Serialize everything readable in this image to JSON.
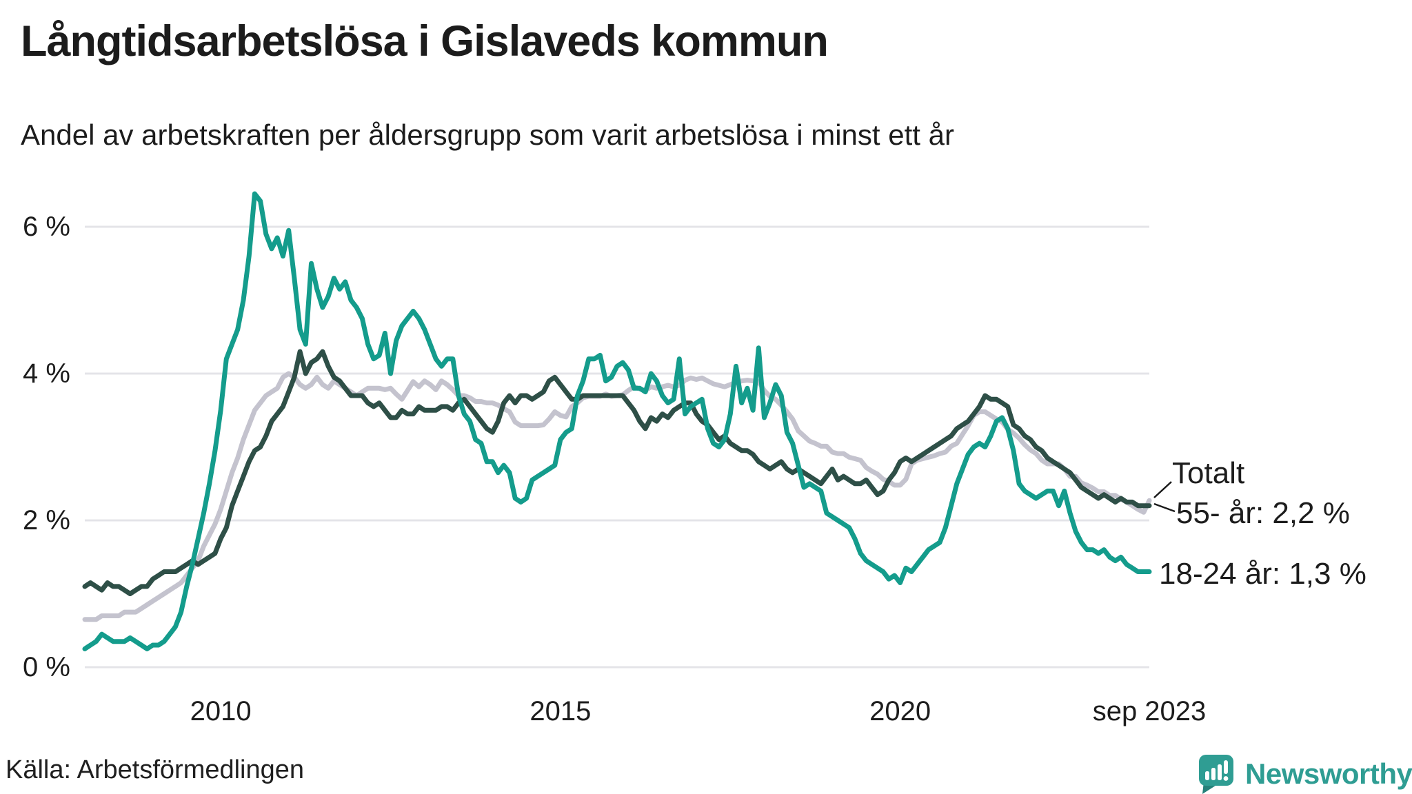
{
  "header": {
    "title": "Långtidsarbetslösa i Gislaveds kommun",
    "subtitle": "Andel av arbetskraften per åldersgrupp som varit arbetslösa i minst ett år"
  },
  "source": {
    "label": "Källa: Arbetsförmedlingen"
  },
  "branding": {
    "name": "Newsworthy",
    "logo_color": "#2F9D93"
  },
  "colors": {
    "grid": "#E4E4E8",
    "text": "#1c1c1c",
    "annotation_connector": "#1a1a1a"
  },
  "chart_data": {
    "type": "line",
    "title": "Långtidsarbetslösa i Gislaveds kommun",
    "subtitle": "Andel av arbetskraften per åldersgrupp som varit arbetslösa i minst ett år",
    "x_start": "2008-01",
    "x_end": "2023-09",
    "x_unit": "month",
    "grid": "horizontal",
    "legend_position": "right-annotations",
    "ylim": [
      0,
      6.6
    ],
    "y_ticks": [
      0,
      2,
      4,
      6
    ],
    "y_tick_suffix": " %",
    "x_tick_labels": [
      {
        "label": "2010",
        "month_index": 24
      },
      {
        "label": "2015",
        "month_index": 84
      },
      {
        "label": "2020",
        "month_index": 144
      },
      {
        "label": "sep 2023",
        "month_index": 188
      }
    ],
    "annotations": [
      {
        "text": "Totalt"
      },
      {
        "text": "55- år: 2,2 %"
      },
      {
        "text": "18-24 år: 1,3 %"
      }
    ],
    "series": [
      {
        "name": "Totalt",
        "color": "#C4C3CE",
        "final_value_label": null,
        "values": [
          0.65,
          0.65,
          0.65,
          0.7,
          0.7,
          0.7,
          0.7,
          0.75,
          0.75,
          0.75,
          0.8,
          0.85,
          0.9,
          0.95,
          1.0,
          1.05,
          1.1,
          1.15,
          1.25,
          1.35,
          1.45,
          1.65,
          1.8,
          1.95,
          2.15,
          2.4,
          2.65,
          2.85,
          3.1,
          3.3,
          3.5,
          3.6,
          3.7,
          3.75,
          3.8,
          3.95,
          4.0,
          3.95,
          3.85,
          3.8,
          3.85,
          3.95,
          3.85,
          3.8,
          3.9,
          3.85,
          3.8,
          3.75,
          3.7,
          3.75,
          3.8,
          3.8,
          3.8,
          3.78,
          3.8,
          3.72,
          3.65,
          3.77,
          3.89,
          3.82,
          3.9,
          3.85,
          3.78,
          3.9,
          3.85,
          3.78,
          3.7,
          3.7,
          3.67,
          3.62,
          3.62,
          3.6,
          3.6,
          3.57,
          3.52,
          3.48,
          3.34,
          3.29,
          3.29,
          3.29,
          3.29,
          3.3,
          3.38,
          3.48,
          3.43,
          3.41,
          3.55,
          3.6,
          3.67,
          3.69,
          3.69,
          3.69,
          3.72,
          3.69,
          3.7,
          3.71,
          3.77,
          3.82,
          3.79,
          3.77,
          3.82,
          3.8,
          3.82,
          3.84,
          3.82,
          3.84,
          3.91,
          3.94,
          3.92,
          3.94,
          3.9,
          3.86,
          3.84,
          3.82,
          3.85,
          3.88,
          3.9,
          3.91,
          3.9,
          3.89,
          3.77,
          3.69,
          3.65,
          3.57,
          3.48,
          3.38,
          3.22,
          3.15,
          3.08,
          3.05,
          3.01,
          3.01,
          2.93,
          2.91,
          2.91,
          2.86,
          2.84,
          2.82,
          2.72,
          2.67,
          2.63,
          2.56,
          2.53,
          2.48,
          2.48,
          2.56,
          2.77,
          2.82,
          2.84,
          2.86,
          2.88,
          2.91,
          2.93,
          3.01,
          3.05,
          3.17,
          3.29,
          3.43,
          3.48,
          3.48,
          3.43,
          3.38,
          3.34,
          3.24,
          3.19,
          3.12,
          3.03,
          2.96,
          2.91,
          2.82,
          2.77,
          2.77,
          2.77,
          2.7,
          2.6,
          2.6,
          2.51,
          2.48,
          2.44,
          2.39,
          2.39,
          2.34,
          2.34,
          2.29,
          2.25,
          2.2,
          2.15,
          2.11,
          2.27
        ]
      },
      {
        "name": "55- år",
        "color": "#2E4F47",
        "final_value_label": "2,2 %",
        "values": [
          1.1,
          1.15,
          1.1,
          1.05,
          1.15,
          1.1,
          1.1,
          1.05,
          1.0,
          1.05,
          1.1,
          1.1,
          1.2,
          1.25,
          1.3,
          1.3,
          1.3,
          1.35,
          1.4,
          1.45,
          1.4,
          1.45,
          1.5,
          1.55,
          1.75,
          1.9,
          2.2,
          2.4,
          2.6,
          2.8,
          2.95,
          3.0,
          3.15,
          3.35,
          3.45,
          3.55,
          3.75,
          3.95,
          4.3,
          4.0,
          4.15,
          4.2,
          4.3,
          4.1,
          3.95,
          3.9,
          3.8,
          3.7,
          3.7,
          3.7,
          3.6,
          3.55,
          3.6,
          3.5,
          3.4,
          3.4,
          3.5,
          3.45,
          3.45,
          3.55,
          3.5,
          3.5,
          3.5,
          3.55,
          3.55,
          3.5,
          3.6,
          3.65,
          3.55,
          3.45,
          3.35,
          3.25,
          3.2,
          3.35,
          3.6,
          3.7,
          3.6,
          3.7,
          3.7,
          3.65,
          3.7,
          3.75,
          3.9,
          3.95,
          3.85,
          3.75,
          3.65,
          3.65,
          3.7,
          3.7,
          3.7,
          3.7,
          3.7,
          3.7,
          3.7,
          3.7,
          3.6,
          3.5,
          3.35,
          3.25,
          3.4,
          3.35,
          3.45,
          3.4,
          3.5,
          3.55,
          3.6,
          3.6,
          3.45,
          3.35,
          3.3,
          3.2,
          3.1,
          3.15,
          3.05,
          3.0,
          2.95,
          2.95,
          2.9,
          2.8,
          2.75,
          2.7,
          2.75,
          2.8,
          2.7,
          2.65,
          2.7,
          2.65,
          2.6,
          2.55,
          2.5,
          2.6,
          2.7,
          2.55,
          2.6,
          2.55,
          2.5,
          2.5,
          2.55,
          2.45,
          2.35,
          2.4,
          2.55,
          2.65,
          2.8,
          2.85,
          2.8,
          2.85,
          2.9,
          2.95,
          3.0,
          3.05,
          3.1,
          3.15,
          3.25,
          3.3,
          3.35,
          3.45,
          3.55,
          3.7,
          3.65,
          3.65,
          3.6,
          3.55,
          3.3,
          3.25,
          3.15,
          3.1,
          3.0,
          2.95,
          2.85,
          2.8,
          2.75,
          2.7,
          2.65,
          2.55,
          2.45,
          2.4,
          2.35,
          2.3,
          2.35,
          2.3,
          2.25,
          2.3,
          2.25,
          2.25,
          2.2,
          2.2,
          2.2
        ]
      },
      {
        "name": "18-24 år",
        "color": "#149C8C",
        "final_value_label": "1,3 %",
        "values": [
          0.25,
          0.3,
          0.35,
          0.45,
          0.4,
          0.35,
          0.35,
          0.35,
          0.4,
          0.35,
          0.3,
          0.25,
          0.3,
          0.3,
          0.35,
          0.45,
          0.55,
          0.75,
          1.1,
          1.4,
          1.75,
          2.1,
          2.5,
          2.95,
          3.5,
          4.2,
          4.4,
          4.6,
          5.0,
          5.6,
          6.45,
          6.35,
          5.9,
          5.7,
          5.85,
          5.6,
          5.95,
          5.3,
          4.6,
          4.4,
          5.5,
          5.15,
          4.9,
          5.05,
          5.3,
          5.15,
          5.25,
          5.0,
          4.9,
          4.75,
          4.4,
          4.2,
          4.25,
          4.55,
          4.0,
          4.45,
          4.65,
          4.75,
          4.85,
          4.75,
          4.6,
          4.4,
          4.2,
          4.1,
          4.2,
          4.2,
          3.7,
          3.45,
          3.35,
          3.1,
          3.05,
          2.8,
          2.8,
          2.65,
          2.75,
          2.65,
          2.3,
          2.25,
          2.3,
          2.55,
          2.6,
          2.65,
          2.7,
          2.75,
          3.1,
          3.2,
          3.25,
          3.7,
          3.9,
          4.2,
          4.2,
          4.25,
          3.9,
          3.95,
          4.1,
          4.15,
          4.05,
          3.8,
          3.8,
          3.75,
          4.0,
          3.9,
          3.7,
          3.6,
          3.65,
          4.2,
          3.45,
          3.55,
          3.6,
          3.65,
          3.25,
          3.05,
          3.0,
          3.1,
          3.45,
          4.1,
          3.6,
          3.8,
          3.5,
          4.35,
          3.4,
          3.6,
          3.85,
          3.7,
          3.2,
          3.05,
          2.75,
          2.45,
          2.5,
          2.45,
          2.4,
          2.1,
          2.05,
          2.0,
          1.95,
          1.9,
          1.75,
          1.55,
          1.45,
          1.4,
          1.35,
          1.3,
          1.2,
          1.25,
          1.15,
          1.35,
          1.3,
          1.4,
          1.5,
          1.6,
          1.65,
          1.7,
          1.9,
          2.2,
          2.5,
          2.7,
          2.9,
          3.0,
          3.05,
          3.0,
          3.15,
          3.35,
          3.4,
          3.25,
          2.95,
          2.5,
          2.4,
          2.35,
          2.3,
          2.35,
          2.4,
          2.4,
          2.2,
          2.4,
          2.1,
          1.85,
          1.7,
          1.6,
          1.6,
          1.55,
          1.6,
          1.5,
          1.45,
          1.5,
          1.4,
          1.35,
          1.3,
          1.3,
          1.3
        ]
      }
    ]
  }
}
